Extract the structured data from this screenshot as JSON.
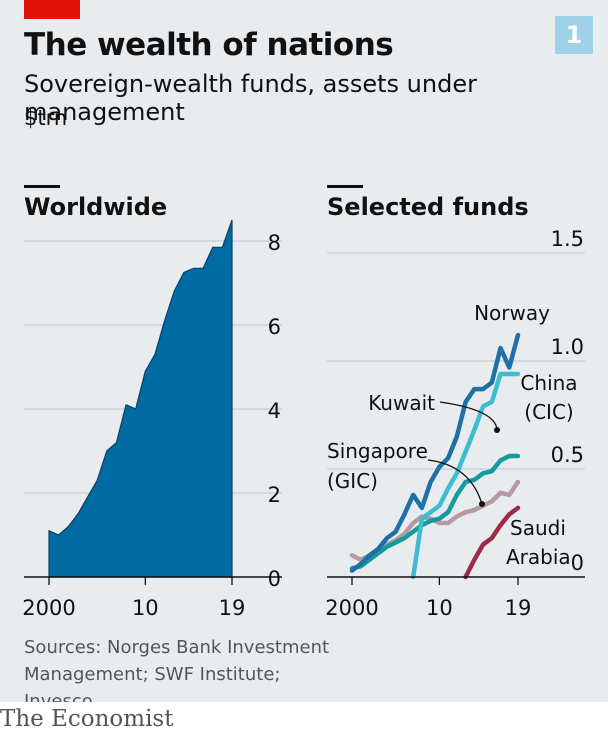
{
  "header": {
    "title": "The wealth of nations",
    "subtitle": "Sovereign-wealth funds, assets under management",
    "unit": "$trn",
    "badge": "1"
  },
  "source": "Sources: Norges Bank Investment Management; SWF Institute; Invesco",
  "brand": "The Economist",
  "colors": {
    "background": "#e8ecef",
    "grid": "#b7c6cf",
    "area": "#006ba2",
    "norway": "#1f6fa8",
    "china": "#3ebcd2",
    "singapore": "#139c9b",
    "kuwait": "#b59aa2",
    "saudi": "#9e2a43",
    "red_tab": "#e3120b",
    "badge": "#9fd2e8"
  },
  "chart_data": [
    {
      "type": "area",
      "title": "Worldwide",
      "x": [
        2000,
        2001,
        2002,
        2003,
        2004,
        2005,
        2006,
        2007,
        2008,
        2009,
        2010,
        2011,
        2012,
        2013,
        2014,
        2015,
        2016,
        2017,
        2018,
        2019
      ],
      "values": [
        1.1,
        1.0,
        1.2,
        1.5,
        1.9,
        2.3,
        3.0,
        3.2,
        4.1,
        4.0,
        4.9,
        5.3,
        6.1,
        6.8,
        7.25,
        7.35,
        7.35,
        7.85,
        7.85,
        8.5
      ],
      "xticks": [
        "2000",
        "10",
        "19"
      ],
      "xtick_values": [
        2000,
        2010,
        2019
      ],
      "yticks": [
        "0",
        "2",
        "4",
        "6",
        "8"
      ],
      "ytick_values": [
        0,
        2,
        4,
        6,
        8
      ],
      "ylim": [
        0,
        8.5
      ],
      "grid": true
    },
    {
      "type": "line",
      "title": "Selected funds",
      "series": [
        {
          "name": "Norway",
          "x": [
            2000,
            2001,
            2002,
            2003,
            2004,
            2005,
            2006,
            2007,
            2008,
            2009,
            2010,
            2011,
            2012,
            2013,
            2014,
            2015,
            2016,
            2017,
            2018,
            2019
          ],
          "values": [
            0.03,
            0.06,
            0.1,
            0.13,
            0.18,
            0.21,
            0.29,
            0.38,
            0.32,
            0.44,
            0.51,
            0.55,
            0.65,
            0.81,
            0.87,
            0.87,
            0.9,
            1.06,
            0.97,
            1.12
          ]
        },
        {
          "name": "China (CIC)",
          "x": [
            2007,
            2008,
            2009,
            2010,
            2011,
            2012,
            2013,
            2014,
            2015,
            2016,
            2017,
            2018,
            2019
          ],
          "values": [
            0.0,
            0.27,
            0.3,
            0.33,
            0.41,
            0.48,
            0.58,
            0.68,
            0.79,
            0.81,
            0.94,
            0.94,
            0.94
          ]
        },
        {
          "name": "Singapore (GIC)",
          "x": [
            2000,
            2001,
            2002,
            2003,
            2004,
            2005,
            2006,
            2007,
            2008,
            2009,
            2010,
            2011,
            2012,
            2013,
            2014,
            2015,
            2016,
            2017,
            2018,
            2019
          ],
          "values": [
            0.04,
            0.05,
            0.08,
            0.11,
            0.14,
            0.16,
            0.18,
            0.21,
            0.24,
            0.26,
            0.27,
            0.3,
            0.38,
            0.44,
            0.45,
            0.48,
            0.49,
            0.54,
            0.56,
            0.56
          ]
        },
        {
          "name": "Kuwait",
          "x": [
            2000,
            2001,
            2002,
            2003,
            2004,
            2005,
            2006,
            2007,
            2008,
            2009,
            2010,
            2011,
            2012,
            2013,
            2014,
            2015,
            2016,
            2017,
            2018,
            2019
          ],
          "values": [
            0.1,
            0.08,
            0.1,
            0.13,
            0.15,
            0.17,
            0.2,
            0.25,
            0.28,
            0.27,
            0.25,
            0.25,
            0.28,
            0.3,
            0.31,
            0.33,
            0.35,
            0.39,
            0.38,
            0.44
          ]
        },
        {
          "name": "Saudi Arabia",
          "x": [
            2013,
            2014,
            2015,
            2016,
            2017,
            2018,
            2019
          ],
          "values": [
            0.0,
            0.08,
            0.15,
            0.18,
            0.24,
            0.29,
            0.32
          ]
        }
      ],
      "labels": [
        "Norway",
        "China",
        "(CIC)",
        "Kuwait",
        "Singapore",
        "(GIC)",
        "Saudi",
        "Arabia"
      ],
      "xticks": [
        "2000",
        "10",
        "19"
      ],
      "xtick_values": [
        2000,
        2010,
        2019
      ],
      "yticks": [
        "0",
        "0.5",
        "1.0",
        "1.5"
      ],
      "ytick_values": [
        0,
        0.5,
        1.0,
        1.5
      ],
      "ylim": [
        0,
        1.5
      ],
      "grid": true
    }
  ]
}
